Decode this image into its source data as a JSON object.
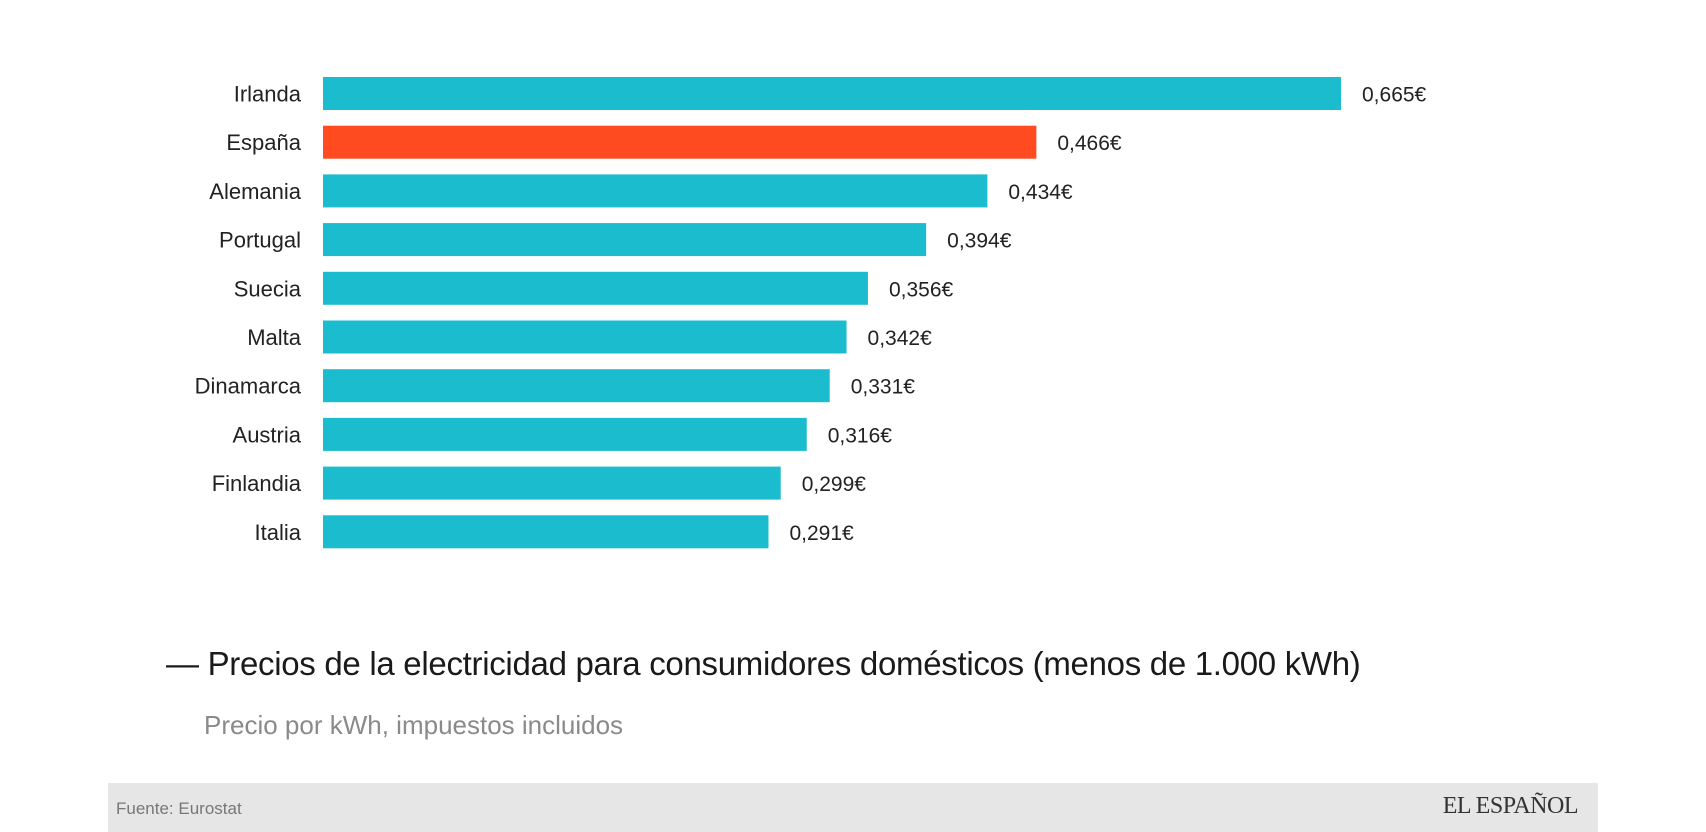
{
  "chart_data": {
    "type": "bar",
    "orientation": "horizontal",
    "categories": [
      "Irlanda",
      "España",
      "Alemania",
      "Portugal",
      "Suecia",
      "Malta",
      "Dinamarca",
      "Austria",
      "Finlandia",
      "Italia"
    ],
    "values": [
      0.665,
      0.466,
      0.434,
      0.394,
      0.356,
      0.342,
      0.331,
      0.316,
      0.299,
      0.291
    ],
    "data_labels": [
      "0,665€",
      "0,466€",
      "0,434€",
      "0,394€",
      "0,356€",
      "0,342€",
      "0,331€",
      "0,316€",
      "0,299€",
      "0,291€"
    ],
    "highlight": "España",
    "colors": {
      "default": "#1bbccd",
      "highlight": "#ff4b1f"
    },
    "title": "— Precios de la electricidad para consumidores domésticos (menos de 1.000 kWh)",
    "subtitle": "Precio por kWh, impuestos incluidos",
    "xlim": [
      0,
      0.665
    ],
    "grid": false,
    "axes_visible": false
  },
  "footer": {
    "source": "Fuente: Eurostat",
    "logo": "EL ESPAÑOL"
  }
}
